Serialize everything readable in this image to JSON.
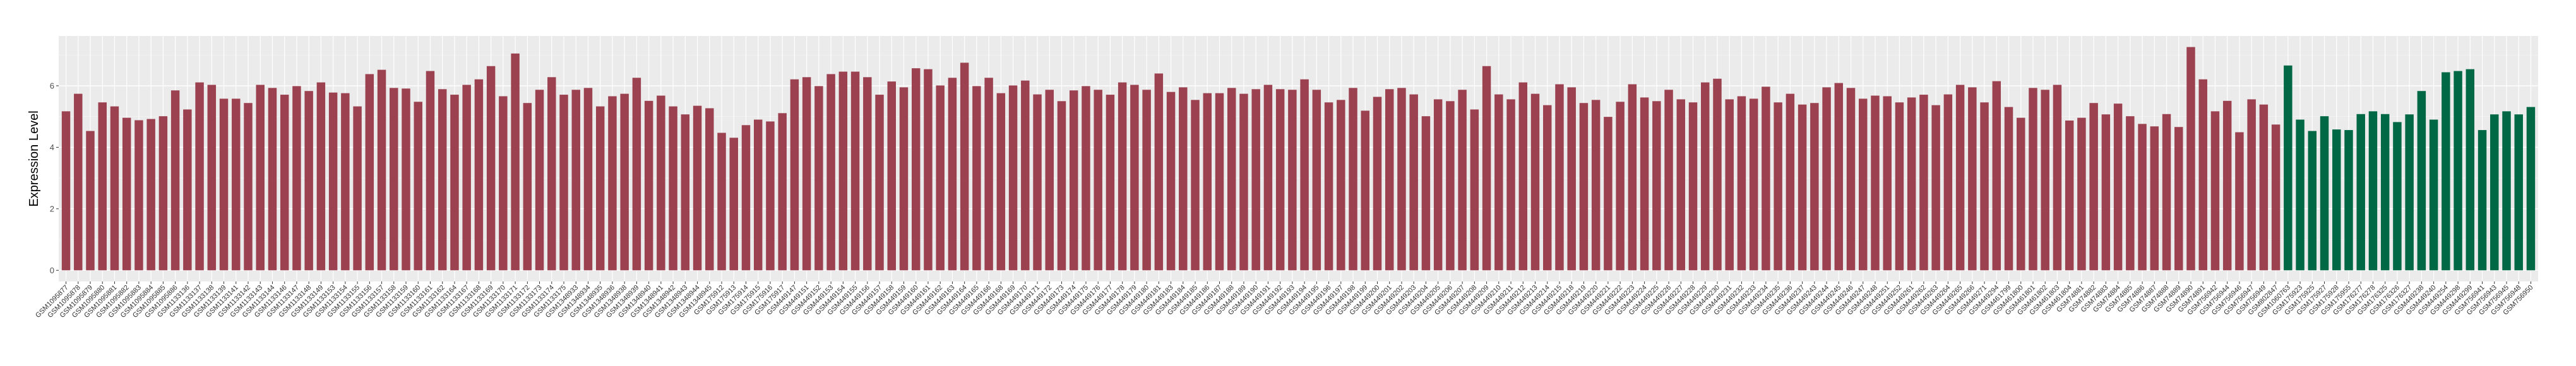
{
  "chart_data": {
    "type": "bar",
    "title": "",
    "xlabel": "",
    "ylabel": "Expression Level",
    "ylim": [
      -0.363,
      7.62
    ],
    "yticks": [
      0,
      2,
      4,
      6
    ],
    "grid": true,
    "background": "#EBEBEB",
    "color_groups": [
      {
        "color": "#9B4150",
        "count": 183
      },
      {
        "color": "#006845",
        "count": 21
      }
    ],
    "categories": [
      "GSM1095877",
      "GSM1095878",
      "GSM1095879",
      "GSM1095880",
      "GSM1095881",
      "GSM1095882",
      "GSM1095883",
      "GSM1095884",
      "GSM1095885",
      "GSM1095886",
      "GSM1133136",
      "GSM1133137",
      "GSM1133138",
      "GSM1133139",
      "GSM1133141",
      "GSM1133142",
      "GSM1133143",
      "GSM1133144",
      "GSM1133146",
      "GSM1133147",
      "GSM1133148",
      "GSM1133149",
      "GSM1133153",
      "GSM1133154",
      "GSM1133155",
      "GSM1133156",
      "GSM1133157",
      "GSM1133158",
      "GSM1133159",
      "GSM1133160",
      "GSM1133161",
      "GSM1133162",
      "GSM1133164",
      "GSM1133167",
      "GSM1133168",
      "GSM1133169",
      "GSM1133170",
      "GSM1133171",
      "GSM1133172",
      "GSM1133173",
      "GSM1133174",
      "GSM1133175",
      "GSM1348933",
      "GSM1348934",
      "GSM1348935",
      "GSM1348936",
      "GSM1348938",
      "GSM1348939",
      "GSM1348940",
      "GSM1348941",
      "GSM1348942",
      "GSM1348943",
      "GSM1348944",
      "GSM1348945",
      "GSM175912",
      "GSM175913",
      "GSM175914",
      "GSM175915",
      "GSM175916",
      "GSM175917",
      "GSM449147",
      "GSM449151",
      "GSM449152",
      "GSM449153",
      "GSM449154",
      "GSM449155",
      "GSM449156",
      "GSM449157",
      "GSM449158",
      "GSM449159",
      "GSM449160",
      "GSM449161",
      "GSM449162",
      "GSM449163",
      "GSM449164",
      "GSM449165",
      "GSM449166",
      "GSM449168",
      "GSM449169",
      "GSM449170",
      "GSM449171",
      "GSM449172",
      "GSM449173",
      "GSM449174",
      "GSM449175",
      "GSM449176",
      "GSM449177",
      "GSM449178",
      "GSM449179",
      "GSM449180",
      "GSM449181",
      "GSM449183",
      "GSM449184",
      "GSM449185",
      "GSM449186",
      "GSM449187",
      "GSM449188",
      "GSM449189",
      "GSM449190",
      "GSM449191",
      "GSM449192",
      "GSM449193",
      "GSM449194",
      "GSM449195",
      "GSM449196",
      "GSM449197",
      "GSM449198",
      "GSM449199",
      "GSM449200",
      "GSM449201",
      "GSM449202",
      "GSM449203",
      "GSM449204",
      "GSM449205",
      "GSM449206",
      "GSM449207",
      "GSM449208",
      "GSM449209",
      "GSM449210",
      "GSM449211",
      "GSM449212",
      "GSM449213",
      "GSM449214",
      "GSM449215",
      "GSM449218",
      "GSM449219",
      "GSM449220",
      "GSM449221",
      "GSM449222",
      "GSM449223",
      "GSM449224",
      "GSM449225",
      "GSM449226",
      "GSM449227",
      "GSM449228",
      "GSM449229",
      "GSM449230",
      "GSM449231",
      "GSM449232",
      "GSM449233",
      "GSM449234",
      "GSM449235",
      "GSM449236",
      "GSM449237",
      "GSM449243",
      "GSM449244",
      "GSM449245",
      "GSM449246",
      "GSM449247",
      "GSM449248",
      "GSM449251",
      "GSM449252",
      "GSM449261",
      "GSM449262",
      "GSM449263",
      "GSM449264",
      "GSM449265",
      "GSM449266",
      "GSM449271",
      "GSM449294",
      "GSM461799",
      "GSM461800",
      "GSM461801",
      "GSM461802",
      "GSM461803",
      "GSM461804",
      "GSM74881",
      "GSM74882",
      "GSM74883",
      "GSM74884",
      "GSM74885",
      "GSM74886",
      "GSM74887",
      "GSM74888",
      "GSM74889",
      "GSM74890",
      "GSM74891",
      "GSM756942",
      "GSM756944",
      "GSM756946",
      "GSM756947",
      "GSM756949",
      "GSM802847",
      "GSM1060763",
      "GSM175923",
      "GSM175925",
      "GSM175927",
      "GSM175928",
      "GSM175955",
      "GSM176277",
      "GSM176278",
      "GSM176325",
      "GSM176326",
      "GSM176327",
      "GSM449238",
      "GSM449240",
      "GSM449254",
      "GSM449298",
      "GSM449299",
      "GSM756941",
      "GSM756943",
      "GSM756945",
      "GSM756948",
      "GSM756950"
    ],
    "values": [
      5.17,
      5.74,
      4.53,
      5.46,
      5.33,
      4.96,
      4.88,
      4.92,
      5.01,
      5.85,
      5.23,
      6.11,
      6.03,
      5.58,
      5.58,
      5.44,
      6.03,
      5.93,
      5.71,
      5.99,
      5.83,
      6.11,
      5.78,
      5.76,
      5.33,
      6.38,
      6.52,
      5.93,
      5.91,
      5.48,
      6.48,
      5.89,
      5.71,
      6.03,
      6.21,
      6.64,
      5.66,
      7.05,
      5.44,
      5.87,
      6.28,
      5.71,
      5.87,
      5.93,
      5.33,
      5.66,
      5.74,
      6.26,
      5.51,
      5.68,
      5.33,
      5.07,
      5.35,
      5.27,
      4.47,
      4.31,
      4.72,
      4.9,
      4.84,
      5.11,
      6.21,
      6.28,
      5.99,
      6.38,
      6.46,
      6.46,
      6.28,
      5.71,
      6.14,
      5.95,
      6.57,
      6.54,
      6.01,
      6.26,
      6.75,
      5.99,
      6.26,
      5.76,
      6.01,
      6.17,
      5.72,
      5.87,
      5.5,
      5.85,
      5.99,
      5.87,
      5.71,
      6.11,
      6.03,
      5.87,
      6.4,
      5.8,
      5.95,
      5.54,
      5.76,
      5.76,
      5.93,
      5.74,
      5.89,
      6.03,
      5.89,
      5.87,
      6.21,
      5.87,
      5.46,
      5.54,
      5.93,
      5.19,
      5.64,
      5.89,
      5.93,
      5.72,
      5.01,
      5.56,
      5.5,
      5.87,
      5.23,
      6.64,
      5.72,
      5.56,
      6.11,
      5.74,
      5.37,
      6.05,
      5.95,
      5.44,
      5.54,
      4.99,
      5.48,
      6.05,
      5.62,
      5.5,
      5.87,
      5.56,
      5.46,
      6.11,
      6.23,
      5.56,
      5.66,
      5.58,
      5.97,
      5.46,
      5.74,
      5.39,
      5.44,
      5.95,
      6.09,
      5.93,
      5.58,
      5.68,
      5.66,
      5.46,
      5.62,
      5.71,
      5.37,
      5.72,
      6.03,
      5.95,
      5.46,
      6.15,
      5.31,
      4.96,
      5.93,
      5.87,
      6.03,
      4.87,
      4.96,
      5.44,
      5.07,
      5.42,
      5.01,
      4.76,
      4.68,
      5.08,
      4.66,
      7.26,
      6.21,
      5.17,
      5.51,
      4.49,
      5.56,
      5.39,
      4.74,
      6.66,
      4.9,
      4.53,
      5.01,
      4.58,
      4.56,
      5.08,
      5.17,
      5.08,
      4.82,
      5.07,
      5.83,
      4.9,
      6.44,
      6.48,
      6.54,
      4.56,
      5.07,
      5.17,
      5.07,
      5.31
    ]
  }
}
